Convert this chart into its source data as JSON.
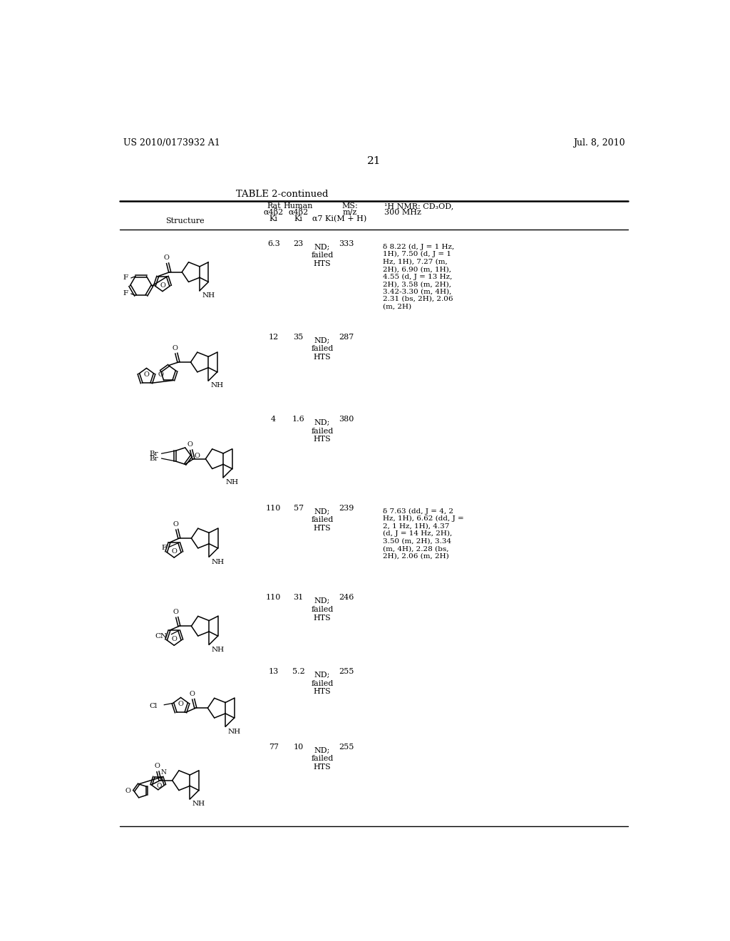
{
  "title_left": "US 2010/0173932 A1",
  "title_right": "Jul. 8, 2010",
  "page_number": "21",
  "table_title": "TABLE 2-continued",
  "bg_color": "#ffffff",
  "text_color": "#000000",
  "rows": [
    {
      "rat_ki": "6.3",
      "human_ki": "23",
      "alpha7": "ND;\nfailed\nHTS",
      "ms": "333",
      "nmr": "δ 8.22 (d, J = 1 Hz,\n1H), 7.50 (d, J = 1\nHz, 1H), 7.27 (m,\n2H), 6.90 (m, 1H),\n4.55 (d, J = 13 Hz,\n2H), 3.58 (m, 2H),\n3.42-3.30 (m, 4H),\n2.31 (bs, 2H), 2.06\n(m, 2H)"
    },
    {
      "rat_ki": "12",
      "human_ki": "35",
      "alpha7": "ND;\nfailed\nHTS",
      "ms": "287",
      "nmr": ""
    },
    {
      "rat_ki": "4",
      "human_ki": "1.6",
      "alpha7": "ND;\nfailed\nHTS",
      "ms": "380",
      "nmr": ""
    },
    {
      "rat_ki": "110",
      "human_ki": "57",
      "alpha7": "ND;\nfailed\nHTS",
      "ms": "239",
      "nmr": "δ 7.63 (dd, J = 4, 2\nHz, 1H), 6.62 (dd, J =\n2, 1 Hz, 1H), 4.37\n(d, J = 14 Hz, 2H),\n3.50 (m, 2H), 3.34\n(m, 4H), 2.28 (bs,\n2H), 2.06 (m, 2H)"
    },
    {
      "rat_ki": "110",
      "human_ki": "31",
      "alpha7": "ND;\nfailed\nHTS",
      "ms": "246",
      "nmr": ""
    },
    {
      "rat_ki": "13",
      "human_ki": "5.2",
      "alpha7": "ND;\nfailed\nHTS",
      "ms": "255",
      "nmr": ""
    },
    {
      "rat_ki": "77",
      "human_ki": "10",
      "alpha7": "ND;\nfailed\nHTS",
      "ms": "255",
      "nmr": ""
    }
  ]
}
